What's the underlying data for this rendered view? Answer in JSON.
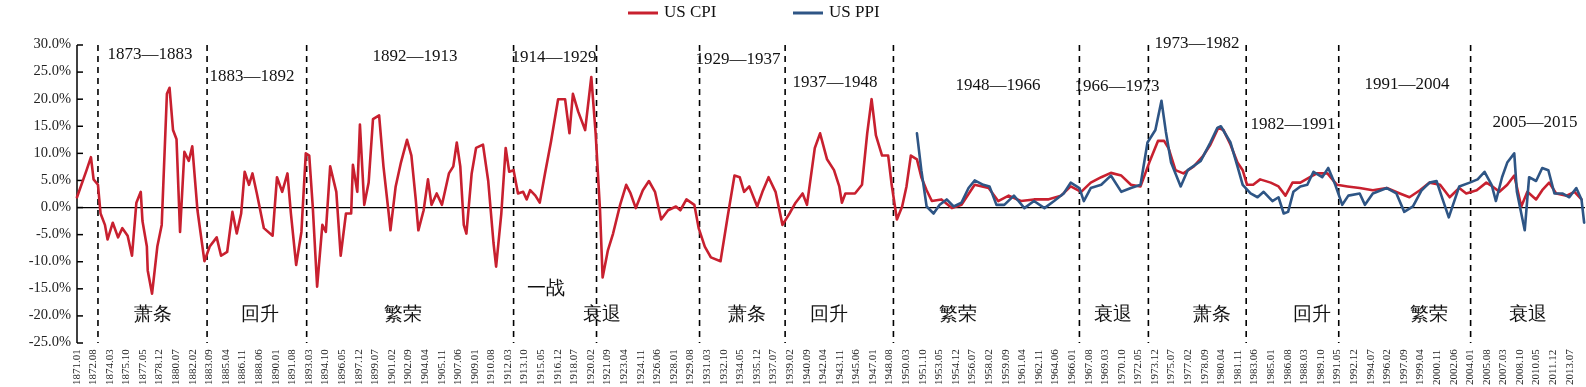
{
  "chart_data": {
    "type": "line",
    "legend": "top",
    "xlim": [
      "1871-01",
      "2014-12"
    ],
    "ylim": [
      -25,
      30
    ],
    "yticks": [
      {
        "value": -25,
        "label": "-25.0%"
      },
      {
        "value": -20,
        "label": "-20.0%"
      },
      {
        "value": -15,
        "label": "-15.0%"
      },
      {
        "value": -10,
        "label": "-10.0%"
      },
      {
        "value": -5,
        "label": "-5.0%"
      },
      {
        "value": 0,
        "label": "0.0%"
      },
      {
        "value": 5,
        "label": "5.0%"
      },
      {
        "value": 10,
        "label": "10.0%"
      },
      {
        "value": 15,
        "label": "15.0%"
      },
      {
        "value": 20,
        "label": "20.0%"
      },
      {
        "value": 25,
        "label": "25.0%"
      },
      {
        "value": 30,
        "label": "30.0%"
      }
    ],
    "xticks": [
      {
        "value": "1871-01",
        "label": "1871.01"
      },
      {
        "value": "1872-08",
        "label": "1872.08"
      },
      {
        "value": "1874-03",
        "label": "1874.03"
      },
      {
        "value": "1875-10",
        "label": "1875.10"
      },
      {
        "value": "1877-05",
        "label": "1877.05"
      },
      {
        "value": "1878-12",
        "label": "1878.12"
      },
      {
        "value": "1880-07",
        "label": "1880.07"
      },
      {
        "value": "1882-02",
        "label": "1882.02"
      },
      {
        "value": "1883-09",
        "label": "1883.09"
      },
      {
        "value": "1885-04",
        "label": "1885.04"
      },
      {
        "value": "1886-11",
        "label": "1886.11"
      },
      {
        "value": "1888-06",
        "label": "1888.06"
      },
      {
        "value": "1890-01",
        "label": "1890.01"
      },
      {
        "value": "1891-08",
        "label": "1891.08"
      },
      {
        "value": "1893-03",
        "label": "1893.03"
      },
      {
        "value": "1894-10",
        "label": "1894.10"
      },
      {
        "value": "1896-05",
        "label": "1896.05"
      },
      {
        "value": "1897-12",
        "label": "1897.12"
      },
      {
        "value": "1899-07",
        "label": "1899.07"
      },
      {
        "value": "1901-02",
        "label": "1901.02"
      },
      {
        "value": "1902-09",
        "label": "1902.09"
      },
      {
        "value": "1904-04",
        "label": "1904.04"
      },
      {
        "value": "1905-11",
        "label": "1905.11"
      },
      {
        "value": "1907-06",
        "label": "1907.06"
      },
      {
        "value": "1909-01",
        "label": "1909.01"
      },
      {
        "value": "1910-08",
        "label": "1910.08"
      },
      {
        "value": "1912-03",
        "label": "1912.03"
      },
      {
        "value": "1913-10",
        "label": "1913.10"
      },
      {
        "value": "1915-05",
        "label": "1915.05"
      },
      {
        "value": "1916-12",
        "label": "1916.12"
      },
      {
        "value": "1918-07",
        "label": "1918.07"
      },
      {
        "value": "1920-02",
        "label": "1920.02"
      },
      {
        "value": "1921-09",
        "label": "1921.09"
      },
      {
        "value": "1923-04",
        "label": "1923.04"
      },
      {
        "value": "1924-11",
        "label": "1924.11"
      },
      {
        "value": "1926-06",
        "label": "1926.06"
      },
      {
        "value": "1928-01",
        "label": "1928.01"
      },
      {
        "value": "1929-08",
        "label": "1929.08"
      },
      {
        "value": "1931-03",
        "label": "1931.03"
      },
      {
        "value": "1932-10",
        "label": "1932.10"
      },
      {
        "value": "1934-05",
        "label": "1934.05"
      },
      {
        "value": "1935-12",
        "label": "1935.12"
      },
      {
        "value": "1937-07",
        "label": "1937.07"
      },
      {
        "value": "1939-02",
        "label": "1939.02"
      },
      {
        "value": "1940-09",
        "label": "1940.09"
      },
      {
        "value": "1942-04",
        "label": "1942.04"
      },
      {
        "value": "1943-11",
        "label": "1943.11"
      },
      {
        "value": "1945-06",
        "label": "1945.06"
      },
      {
        "value": "1947-01",
        "label": "1947.01"
      },
      {
        "value": "1948-08",
        "label": "1948.08"
      },
      {
        "value": "1950-03",
        "label": "1950.03"
      },
      {
        "value": "1951-10",
        "label": "1951.10"
      },
      {
        "value": "1953-05",
        "label": "1953.05"
      },
      {
        "value": "1954-12",
        "label": "1954.12"
      },
      {
        "value": "1956-07",
        "label": "1956.07"
      },
      {
        "value": "1958-02",
        "label": "1958.02"
      },
      {
        "value": "1959-09",
        "label": "1959.09"
      },
      {
        "value": "1961-04",
        "label": "1961.04"
      },
      {
        "value": "1962-11",
        "label": "1962.11"
      },
      {
        "value": "1964-06",
        "label": "1964.06"
      },
      {
        "value": "1966-01",
        "label": "1966.01"
      },
      {
        "value": "1967-08",
        "label": "1967.08"
      },
      {
        "value": "1969-03",
        "label": "1969.03"
      },
      {
        "value": "1970-10",
        "label": "1970.10"
      },
      {
        "value": "1972-05",
        "label": "1972.05"
      },
      {
        "value": "1973-12",
        "label": "1973.12"
      },
      {
        "value": "1975-07",
        "label": "1975.07"
      },
      {
        "value": "1977-02",
        "label": "1977.02"
      },
      {
        "value": "1978-09",
        "label": "1978.09"
      },
      {
        "value": "1980-04",
        "label": "1980.04"
      },
      {
        "value": "1981-11",
        "label": "1981.11"
      },
      {
        "value": "1983-06",
        "label": "1983.06"
      },
      {
        "value": "1985-01",
        "label": "1985.01"
      },
      {
        "value": "1986-08",
        "label": "1986.08"
      },
      {
        "value": "1988-03",
        "label": "1988.03"
      },
      {
        "value": "1989-10",
        "label": "1989.10"
      },
      {
        "value": "1991-05",
        "label": "1991.05"
      },
      {
        "value": "1992-12",
        "label": "1992.12"
      },
      {
        "value": "1994-07",
        "label": "1994.07"
      },
      {
        "value": "1996-02",
        "label": "1996.02"
      },
      {
        "value": "1997-09",
        "label": "1997.09"
      },
      {
        "value": "1999-04",
        "label": "1999.04"
      },
      {
        "value": "2000-11",
        "label": "2000.11"
      },
      {
        "value": "2002-06",
        "label": "2002.06"
      },
      {
        "value": "2004-01",
        "label": "2004.01"
      },
      {
        "value": "2005-08",
        "label": "2005.08"
      },
      {
        "value": "2007-03",
        "label": "2007.03"
      },
      {
        "value": "2008-10",
        "label": "2008.10"
      },
      {
        "value": "2010-05",
        "label": "2010.05"
      },
      {
        "value": "2011-12",
        "label": "2011.12"
      },
      {
        "value": "2013-07",
        "label": "2013.07"
      }
    ],
    "series": [
      {
        "name": "US CPI",
        "color": "#c8202f",
        "x": [
          "1871-01",
          "1871-12",
          "1872-05",
          "1872-08",
          "1873-01",
          "1873-04",
          "1873-09",
          "1873-12",
          "1874-06",
          "1874-12",
          "1875-05",
          "1875-11",
          "1876-04",
          "1876-09",
          "1877-02",
          "1877-04",
          "1877-09",
          "1877-10",
          "1878-03",
          "1878-06",
          "1878-09",
          "1879-02",
          "1879-08",
          "1879-11",
          "1880-03",
          "1880-07",
          "1880-11",
          "1881-04",
          "1881-09",
          "1882-01",
          "1882-07",
          "1883-03",
          "1883-09",
          "1884-05",
          "1884-10",
          "1885-05",
          "1885-11",
          "1886-04",
          "1886-09",
          "1887-01",
          "1887-06",
          "1887-10",
          "1888-03",
          "1888-11",
          "1889-09",
          "1890-02",
          "1890-08",
          "1891-02",
          "1891-06",
          "1891-12",
          "1892-06",
          "1892-11",
          "1893-03",
          "1893-07",
          "1893-12",
          "1894-06",
          "1894-10",
          "1895-03",
          "1895-10",
          "1896-03",
          "1896-09",
          "1897-03",
          "1897-05",
          "1897-10",
          "1898-01",
          "1898-06",
          "1898-11",
          "1899-04",
          "1899-11",
          "1900-04",
          "1900-10",
          "1900-12",
          "1901-06",
          "1901-12",
          "1902-07",
          "1902-12",
          "1903-05",
          "1903-08",
          "1904-02",
          "1904-07",
          "1904-11",
          "1905-05",
          "1905-11",
          "1906-07",
          "1906-12",
          "1907-04",
          "1907-08",
          "1907-12",
          "1908-03",
          "1908-09",
          "1909-02",
          "1909-10",
          "1910-04",
          "1910-10",
          "1911-01",
          "1911-07",
          "1911-12",
          "1912-04",
          "1912-09",
          "1913-02",
          "1913-08",
          "1913-12",
          "1914-04",
          "1914-10",
          "1915-03",
          "1915-09",
          "1916-04",
          "1916-12",
          "1917-08",
          "1918-01",
          "1918-05",
          "1918-11",
          "1919-07",
          "1920-02",
          "1920-07",
          "1920-12",
          "1921-03",
          "1921-09",
          "1922-03",
          "1922-11",
          "1923-06",
          "1923-11",
          "1924-05",
          "1925-01",
          "1925-08",
          "1926-03",
          "1926-10",
          "1927-06",
          "1928-03",
          "1928-08",
          "1929-03",
          "1929-12",
          "1930-05",
          "1930-12",
          "1931-07",
          "1932-06",
          "1933-02",
          "1933-10",
          "1934-04",
          "1934-09",
          "1935-03",
          "1935-12",
          "1936-06",
          "1937-01",
          "1937-09",
          "1938-05",
          "1939-01",
          "1939-08",
          "1940-04",
          "1940-09",
          "1941-06",
          "1941-12",
          "1942-08",
          "1943-04",
          "1943-10",
          "1944-01",
          "1944-05",
          "1945-04",
          "1945-12",
          "1946-06",
          "1946-11",
          "1947-04",
          "1947-11",
          "1948-06",
          "1948-10",
          "1949-04",
          "1949-10",
          "1950-03",
          "1950-08",
          "1951-03",
          "1951-08",
          "1952-02",
          "1952-08",
          "1953-07",
          "1954-07",
          "1955-06",
          "1956-09",
          "1958-01",
          "1958-12",
          "1959-12",
          "1961-02",
          "1962-05",
          "1963-09",
          "1964-12",
          "1965-11",
          "1966-11",
          "1967-10",
          "1968-10",
          "1969-09",
          "1970-09",
          "1971-08",
          "1972-07",
          "1973-05",
          "1974-03",
          "1974-10",
          "1975-03",
          "1975-11",
          "1976-08",
          "1977-08",
          "1978-07",
          "1979-03",
          "1979-12",
          "1980-06",
          "1981-02",
          "1981-10",
          "1982-04",
          "1982-09",
          "1983-04",
          "1983-12",
          "1984-12",
          "1985-09",
          "1986-05",
          "1987-01",
          "1987-10",
          "1988-09",
          "1989-05",
          "1990-05",
          "1991-04",
          "1992-04",
          "1993-06",
          "1994-09",
          "1996-01",
          "1997-04",
          "1998-03",
          "1999-03",
          "2000-02",
          "2001-02",
          "2002-01",
          "2002-12",
          "2003-08",
          "2004-08",
          "2005-07",
          "2006-02",
          "2006-10",
          "2007-07",
          "2008-03",
          "2008-11",
          "2009-06",
          "2010-04",
          "2010-11",
          "2011-07",
          "2012-03",
          "2013-03",
          "2013-12",
          "2014-08"
        ],
        "values": [
          1.9,
          6.9,
          9.3,
          5.2,
          4.2,
          -1.1,
          -3.2,
          -5.9,
          -2.8,
          -5.5,
          -3.8,
          -5.2,
          -8.9,
          0.9,
          2.9,
          -2.5,
          -7.2,
          -11.6,
          -15.9,
          -11.6,
          -7.2,
          -3.2,
          21.0,
          22.1,
          14.3,
          12.6,
          -4.5,
          10.3,
          8.6,
          11.3,
          -0.5,
          -9.9,
          -7.2,
          -5.5,
          -8.9,
          -8.2,
          -0.8,
          -4.8,
          -1.1,
          6.6,
          4.2,
          6.3,
          2.6,
          -3.8,
          -5.2,
          5.6,
          2.9,
          6.3,
          -1.1,
          -10.6,
          -4.5,
          10.0,
          9.6,
          0.2,
          -14.6,
          -3.2,
          -4.5,
          7.6,
          2.9,
          -8.9,
          -1.1,
          -1.1,
          7.9,
          2.9,
          15.3,
          0.5,
          4.6,
          16.3,
          17.0,
          7.6,
          -1.1,
          -4.2,
          3.9,
          8.3,
          12.5,
          9.6,
          1.5,
          -4.2,
          -0.5,
          5.2,
          0.5,
          2.6,
          0.5,
          6.3,
          7.6,
          12.0,
          7.6,
          -3.2,
          -4.8,
          6.3,
          11.0,
          11.6,
          4.9,
          -6.5,
          -10.9,
          -1.1,
          11.0,
          6.6,
          6.9,
          2.6,
          2.9,
          1.5,
          3.2,
          2.2,
          0.9,
          6.3,
          12.3,
          20.0,
          20.0,
          13.7,
          21.0,
          17.7,
          14.3,
          24.1,
          13.7,
          -0.5,
          -12.9,
          -7.9,
          -4.8,
          0.5,
          4.2,
          2.6,
          -0.1,
          3.2,
          4.9,
          2.9,
          -2.2,
          -0.5,
          0.2,
          -0.5,
          1.5,
          0.5,
          -3.8,
          -7.2,
          -9.2,
          -9.9,
          -1.8,
          5.9,
          5.6,
          2.9,
          3.9,
          0.2,
          2.9,
          5.6,
          2.9,
          -3.2,
          -1.1,
          0.9,
          2.6,
          0.5,
          11.0,
          13.7,
          8.9,
          6.9,
          3.9,
          0.9,
          2.6,
          2.6,
          4.2,
          13.7,
          20.0,
          13.3,
          9.6,
          9.6,
          4.2,
          -2.2,
          0.2,
          3.9,
          9.6,
          8.9,
          5.6,
          3.2,
          1.2,
          1.5,
          -0.1,
          0.5,
          4.2,
          3.6,
          1.2,
          2.2,
          1.2,
          1.5,
          1.5,
          2.2,
          3.9,
          2.9,
          4.6,
          5.6,
          6.4,
          5.9,
          4.2,
          3.9,
          8.3,
          12.3,
          12.3,
          11.0,
          6.9,
          6.3,
          7.6,
          9.6,
          11.6,
          14.7,
          14.3,
          11.6,
          8.3,
          6.9,
          4.2,
          4.2,
          5.2,
          4.6,
          3.9,
          2.2,
          4.6,
          4.6,
          5.6,
          6.3,
          6.3,
          4.2,
          3.9,
          3.6,
          3.2,
          3.6,
          2.6,
          1.9,
          3.2,
          4.6,
          4.2,
          1.9,
          3.6,
          2.6,
          3.2,
          4.6,
          3.9,
          2.9,
          4.2,
          5.9,
          0.2,
          2.9,
          1.5,
          3.2,
          4.6,
          2.6,
          2.2,
          2.9,
          1.5
        ]
      },
      {
        "name": "US PPI",
        "color": "#2e5585",
        "x": [
          "1951-03",
          "1951-08",
          "1952-02",
          "1952-10",
          "1953-05",
          "1954-01",
          "1954-09",
          "1955-06",
          "1956-02",
          "1956-09",
          "1957-07",
          "1958-02",
          "1958-10",
          "1959-07",
          "1960-06",
          "1961-06",
          "1962-05",
          "1963-05",
          "1964-04",
          "1965-03",
          "1965-11",
          "1966-09",
          "1967-02",
          "1967-10",
          "1968-10",
          "1969-09",
          "1970-09",
          "1971-08",
          "1972-07",
          "1973-03",
          "1973-12",
          "1974-07",
          "1974-12",
          "1975-06",
          "1976-05",
          "1977-01",
          "1978-04",
          "1979-03",
          "1979-11",
          "1980-03",
          "1981-02",
          "1981-10",
          "1982-04",
          "1983-01",
          "1983-09",
          "1984-04",
          "1985-02",
          "1985-09",
          "1986-03",
          "1986-08",
          "1987-02",
          "1987-10",
          "1988-06",
          "1989-01",
          "1989-11",
          "1990-06",
          "1991-02",
          "1991-10",
          "1992-05",
          "1993-06",
          "1993-12",
          "1994-09",
          "1996-01",
          "1996-12",
          "1997-09",
          "1998-07",
          "1999-05",
          "2000-02",
          "2000-10",
          "2001-05",
          "2001-12",
          "2002-07",
          "2002-12",
          "2003-12",
          "2004-09",
          "2005-05",
          "2006-01",
          "2006-06",
          "2007-01",
          "2007-07",
          "2008-03",
          "2008-06",
          "2008-11",
          "2009-03",
          "2009-08",
          "2010-04",
          "2010-11",
          "2011-06",
          "2012-01",
          "2012-10",
          "2013-06",
          "2014-02",
          "2014-08",
          "2014-11"
        ],
        "values": [
          13.7,
          6.9,
          0.2,
          -1.1,
          0.5,
          1.5,
          0.2,
          0.9,
          3.6,
          5.0,
          4.2,
          3.9,
          0.5,
          0.5,
          2.2,
          -0.1,
          1.2,
          -0.1,
          1.2,
          2.6,
          4.6,
          3.6,
          1.2,
          3.6,
          4.2,
          5.9,
          2.9,
          3.6,
          4.2,
          12.0,
          14.3,
          19.7,
          14.0,
          8.3,
          3.9,
          6.9,
          8.6,
          12.0,
          14.7,
          15.0,
          12.0,
          7.6,
          4.2,
          2.6,
          1.9,
          2.9,
          1.2,
          1.9,
          -1.1,
          -0.8,
          2.9,
          3.9,
          4.2,
          6.6,
          5.6,
          7.3,
          4.2,
          0.5,
          2.2,
          2.6,
          0.5,
          2.6,
          3.6,
          2.6,
          -0.8,
          0.2,
          3.2,
          4.6,
          4.9,
          1.5,
          -1.8,
          1.5,
          3.9,
          4.6,
          5.2,
          6.6,
          4.2,
          1.2,
          5.6,
          8.3,
          10.0,
          2.9,
          -1.1,
          -4.2,
          5.6,
          4.9,
          7.3,
          6.9,
          2.6,
          2.6,
          1.9,
          3.6,
          1.5,
          -2.8
        ]
      }
    ],
    "ref_lines": [
      {
        "axis": "x",
        "value": "1873-01",
        "color": "#000000",
        "line_style": "dashed"
      },
      {
        "axis": "x",
        "value": "1883-06",
        "color": "#000000",
        "line_style": "dashed"
      },
      {
        "axis": "x",
        "value": "1892-12",
        "color": "#000000",
        "line_style": "dashed"
      },
      {
        "axis": "x",
        "value": "1912-09",
        "color": "#000000",
        "line_style": "dashed"
      },
      {
        "axis": "x",
        "value": "1920-08",
        "color": "#000000",
        "line_style": "dashed"
      },
      {
        "axis": "x",
        "value": "1930-06",
        "color": "#000000",
        "line_style": "dashed"
      },
      {
        "axis": "x",
        "value": "1938-08",
        "color": "#000000",
        "line_style": "dashed"
      },
      {
        "axis": "x",
        "value": "1948-12",
        "color": "#000000",
        "line_style": "dashed"
      },
      {
        "axis": "x",
        "value": "1966-09",
        "color": "#000000",
        "line_style": "dashed"
      },
      {
        "axis": "x",
        "value": "1973-04",
        "color": "#000000",
        "line_style": "dashed"
      },
      {
        "axis": "x",
        "value": "1982-08",
        "color": "#000000",
        "line_style": "dashed"
      },
      {
        "axis": "x",
        "value": "1991-06",
        "color": "#000000",
        "line_style": "dashed"
      },
      {
        "axis": "x",
        "value": "2004-01",
        "color": "#000000",
        "line_style": "dashed"
      }
    ],
    "annotations": [
      "1873—1883",
      "1883—1892",
      "1892—1913",
      "1914—1929",
      "1929—1937",
      "1937—1948",
      "1948—1966",
      "1966—1973",
      "1973—1982",
      "1982—1991",
      "1991—2004",
      "2005—2015",
      "一战",
      "萧条",
      "回升",
      "繁荣",
      "衰退",
      "萧条",
      "回升",
      "繁荣",
      "衰退",
      "萧条",
      "回升",
      "繁荣",
      "衰退"
    ]
  }
}
